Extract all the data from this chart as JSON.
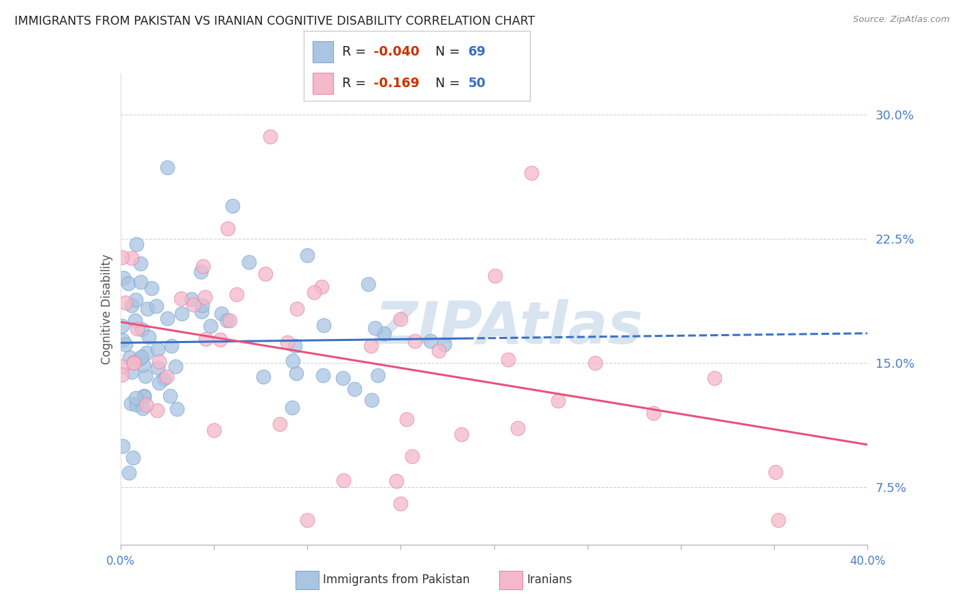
{
  "title": "IMMIGRANTS FROM PAKISTAN VS IRANIAN COGNITIVE DISABILITY CORRELATION CHART",
  "source": "Source: ZipAtlas.com",
  "ylabel": "Cognitive Disability",
  "xlim": [
    0.0,
    0.4
  ],
  "ylim": [
    0.04,
    0.325
  ],
  "yticks_right": [
    0.075,
    0.15,
    0.225,
    0.3
  ],
  "ytick_labels_right": [
    "7.5%",
    "15.0%",
    "22.5%",
    "30.0%"
  ],
  "series1_label": "Immigrants from Pakistan",
  "series1_color": "#aac4e2",
  "series1_edge_color": "#7aaad0",
  "series1_line_color": "#3a72c4",
  "series1_R": -0.04,
  "series1_N": 69,
  "series2_label": "Iranians",
  "series2_color": "#f5b8ca",
  "series2_edge_color": "#e888a8",
  "series2_line_color": "#e8527a",
  "series2_R": -0.169,
  "series2_N": 50,
  "watermark_text": "ZIPAtlas",
  "watermark_color": "#d8e4f0",
  "background_color": "#ffffff",
  "grid_color": "#cccccc",
  "title_color": "#222222",
  "title_fontsize": 12.5,
  "source_color": "#888888",
  "axis_label_color": "#555555",
  "tick_label_color_right": "#4a7ec7",
  "tick_label_color_x": "#4a7ec7",
  "legend_box_edge": "#cccccc",
  "r_value_color": "#cc3300",
  "n_value_color": "#3a72c4"
}
